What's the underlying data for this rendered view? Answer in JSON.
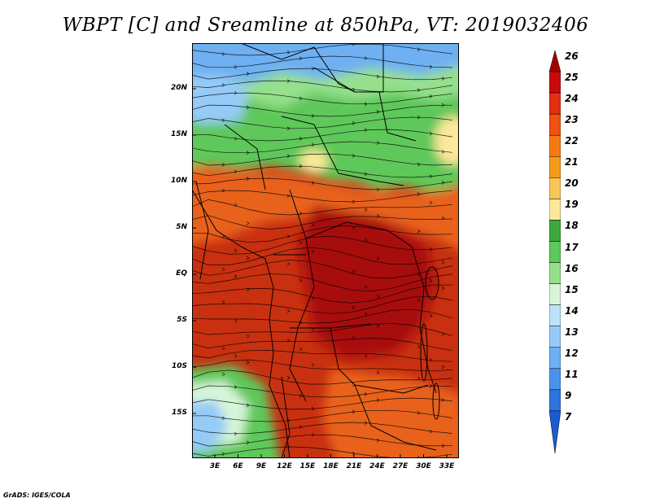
{
  "title": "WBPT [C] and Sreamline at 850hPa, VT: 2019032406",
  "footer": "GrADS: IGES/COLA",
  "lat_ticks": [
    "20N",
    "15N",
    "10N",
    "5N",
    "EQ",
    "5S",
    "10S",
    "15S"
  ],
  "lon_ticks": [
    "3E",
    "6E",
    "9E",
    "12E",
    "15E",
    "18E",
    "21E",
    "24E",
    "27E",
    "30E",
    "33E"
  ],
  "colorbar": {
    "labels": [
      "26",
      "25",
      "24",
      "23",
      "22",
      "21",
      "20",
      "19",
      "18",
      "17",
      "16",
      "15",
      "14",
      "13",
      "12",
      "11",
      "9",
      "7"
    ],
    "colors": [
      "#a50000",
      "#c80a0a",
      "#e23010",
      "#f05214",
      "#f57a14",
      "#f59b1c",
      "#fac55a",
      "#fbe89a",
      "#3ca83c",
      "#5ec85a",
      "#96e08c",
      "#d8f5d8",
      "#bfe2fb",
      "#96cbf7",
      "#6eb0f2",
      "#4a93ea",
      "#2e74dd",
      "#1a5bd0"
    ]
  },
  "map_colors": {
    "hot": "#c83010",
    "very_hot": "#a81008",
    "warm": "#e8621c",
    "green": "#5ec85a",
    "light_green": "#96e08c",
    "pale": "#d8f5d8",
    "blue": "#6eb0f2",
    "light_blue": "#96cbf7",
    "yellow": "#fbe89a"
  }
}
